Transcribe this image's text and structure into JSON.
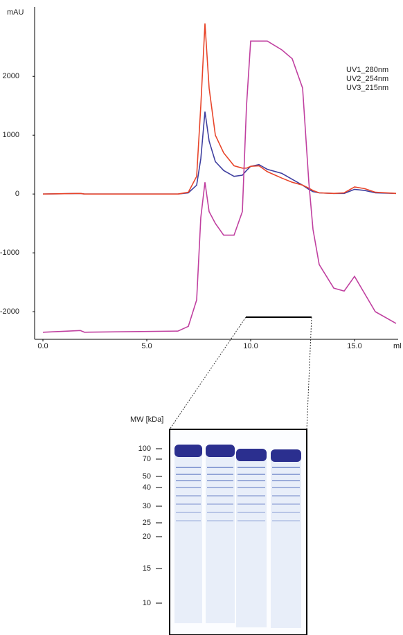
{
  "chart_data": {
    "type": "line",
    "y_label": "mAU",
    "x_label": "ml",
    "x": [
      0,
      1.8,
      2,
      6.5,
      7,
      7.4,
      7.6,
      7.8,
      8.0,
      8.3,
      8.7,
      9.2,
      9.6,
      9.8,
      10.0,
      10.4,
      10.8,
      11.5,
      12.0,
      12.5,
      12.8,
      13.0,
      13.3,
      14.0,
      14.5,
      15.0,
      15.5,
      16.0,
      17.0
    ],
    "series": [
      {
        "name": "UV1_280nm",
        "color": "#3f3f9f",
        "values": [
          0,
          10,
          0,
          0,
          20,
          150,
          600,
          1400,
          900,
          550,
          400,
          300,
          320,
          400,
          470,
          500,
          420,
          350,
          250,
          150,
          80,
          40,
          20,
          10,
          10,
          80,
          60,
          20,
          10
        ]
      },
      {
        "name": "UV2_254nm",
        "color": "#e8452a",
        "values": [
          0,
          10,
          0,
          0,
          30,
          300,
          1500,
          2900,
          1800,
          1000,
          700,
          480,
          440,
          440,
          470,
          480,
          380,
          270,
          200,
          150,
          100,
          60,
          20,
          10,
          20,
          120,
          90,
          30,
          10
        ]
      },
      {
        "name": "UV3_215nm",
        "color": "#c040a0",
        "values": [
          -2350,
          -2320,
          -2350,
          -2330,
          -2250,
          -1800,
          -400,
          200,
          -300,
          -500,
          -700,
          -700,
          -300,
          1500,
          2600,
          2600,
          2600,
          2450,
          2300,
          1800,
          200,
          -600,
          -1200,
          -1600,
          -1650,
          -1400,
          -1700,
          -2000,
          -2200
        ]
      }
    ],
    "xlim": [
      -0.4,
      17.1
    ],
    "ylim": [
      -2470,
      3180
    ],
    "xticks": [
      {
        "value": 0,
        "label": "0.0"
      },
      {
        "value": 5,
        "label": "5.0"
      },
      {
        "value": 10,
        "label": "10.0"
      },
      {
        "value": 15,
        "label": "15.0"
      }
    ],
    "yticks": [
      -2000,
      -1000,
      0,
      1000,
      2000
    ],
    "legend": "upper right"
  },
  "gel": {
    "title": "MW [kDa]",
    "markers": [
      "100",
      "70",
      "50",
      "40",
      "30",
      "25",
      "20",
      "15",
      "10"
    ]
  }
}
